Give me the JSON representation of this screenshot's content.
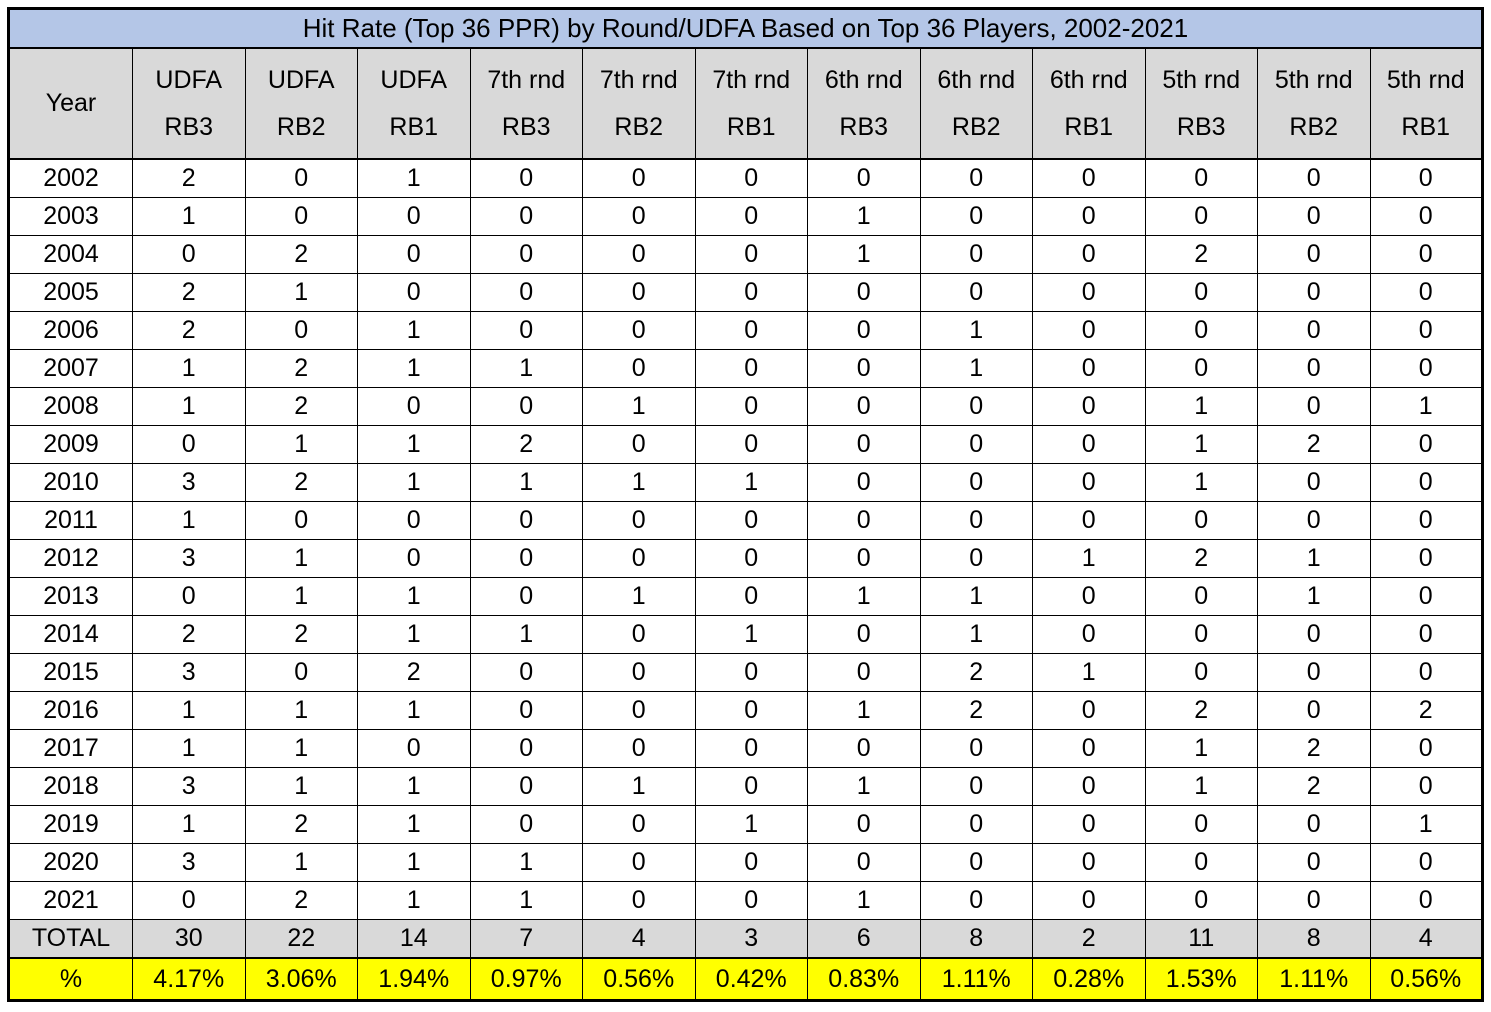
{
  "chart_data": {
    "type": "table",
    "title": "Hit Rate (Top 36 PPR) by Round/UDFA Based on Top 36 Players, 2002-2021",
    "column_headers": [
      [
        "Year",
        ""
      ],
      [
        "UDFA",
        "RB3"
      ],
      [
        "UDFA",
        "RB2"
      ],
      [
        "UDFA",
        "RB1"
      ],
      [
        "7th rnd",
        "RB3"
      ],
      [
        "7th rnd",
        "RB2"
      ],
      [
        "7th rnd",
        "RB1"
      ],
      [
        "6th rnd",
        "RB3"
      ],
      [
        "6th rnd",
        "RB2"
      ],
      [
        "6th rnd",
        "RB1"
      ],
      [
        "5th rnd",
        "RB3"
      ],
      [
        "5th rnd",
        "RB2"
      ],
      [
        "5th rnd",
        "RB1"
      ]
    ],
    "years": [
      "2002",
      "2003",
      "2004",
      "2005",
      "2006",
      "2007",
      "2008",
      "2009",
      "2010",
      "2011",
      "2012",
      "2013",
      "2014",
      "2015",
      "2016",
      "2017",
      "2018",
      "2019",
      "2020",
      "2021"
    ],
    "values": [
      [
        2,
        0,
        1,
        0,
        0,
        0,
        0,
        0,
        0,
        0,
        0,
        0
      ],
      [
        1,
        0,
        0,
        0,
        0,
        0,
        1,
        0,
        0,
        0,
        0,
        0
      ],
      [
        0,
        2,
        0,
        0,
        0,
        0,
        1,
        0,
        0,
        2,
        0,
        0
      ],
      [
        2,
        1,
        0,
        0,
        0,
        0,
        0,
        0,
        0,
        0,
        0,
        0
      ],
      [
        2,
        0,
        1,
        0,
        0,
        0,
        0,
        1,
        0,
        0,
        0,
        0
      ],
      [
        1,
        2,
        1,
        1,
        0,
        0,
        0,
        1,
        0,
        0,
        0,
        0
      ],
      [
        1,
        2,
        0,
        0,
        1,
        0,
        0,
        0,
        0,
        1,
        0,
        1
      ],
      [
        0,
        1,
        1,
        2,
        0,
        0,
        0,
        0,
        0,
        1,
        2,
        0
      ],
      [
        3,
        2,
        1,
        1,
        1,
        1,
        0,
        0,
        0,
        1,
        0,
        0
      ],
      [
        1,
        0,
        0,
        0,
        0,
        0,
        0,
        0,
        0,
        0,
        0,
        0
      ],
      [
        3,
        1,
        0,
        0,
        0,
        0,
        0,
        0,
        1,
        2,
        1,
        0
      ],
      [
        0,
        1,
        1,
        0,
        1,
        0,
        1,
        1,
        0,
        0,
        1,
        0
      ],
      [
        2,
        2,
        1,
        1,
        0,
        1,
        0,
        1,
        0,
        0,
        0,
        0
      ],
      [
        3,
        0,
        2,
        0,
        0,
        0,
        0,
        2,
        1,
        0,
        0,
        0
      ],
      [
        1,
        1,
        1,
        0,
        0,
        0,
        1,
        2,
        0,
        2,
        0,
        2
      ],
      [
        1,
        1,
        0,
        0,
        0,
        0,
        0,
        0,
        0,
        1,
        2,
        0
      ],
      [
        3,
        1,
        1,
        0,
        1,
        0,
        1,
        0,
        0,
        1,
        2,
        0
      ],
      [
        1,
        2,
        1,
        0,
        0,
        1,
        0,
        0,
        0,
        0,
        0,
        1
      ],
      [
        3,
        1,
        1,
        1,
        0,
        0,
        0,
        0,
        0,
        0,
        0,
        0
      ],
      [
        0,
        2,
        1,
        1,
        0,
        0,
        1,
        0,
        0,
        0,
        0,
        0
      ]
    ],
    "total_label": "TOTAL",
    "totals": [
      30,
      22,
      14,
      7,
      4,
      3,
      6,
      8,
      2,
      11,
      8,
      4
    ],
    "percent_label": "%",
    "percents": [
      "4.17%",
      "3.06%",
      "1.94%",
      "0.97%",
      "0.56%",
      "0.42%",
      "0.83%",
      "1.11%",
      "0.28%",
      "1.53%",
      "1.11%",
      "0.56%"
    ],
    "layout_hints": {
      "grid": "all-borders",
      "title_row_span": 13
    }
  },
  "colors": {
    "title_bg": "#B4C6E7",
    "header_bg": "#D9D9D9",
    "total_bg": "#D9D9D9",
    "percent_bg": "#FFFF00",
    "border": "#000000",
    "text": "#000000"
  }
}
